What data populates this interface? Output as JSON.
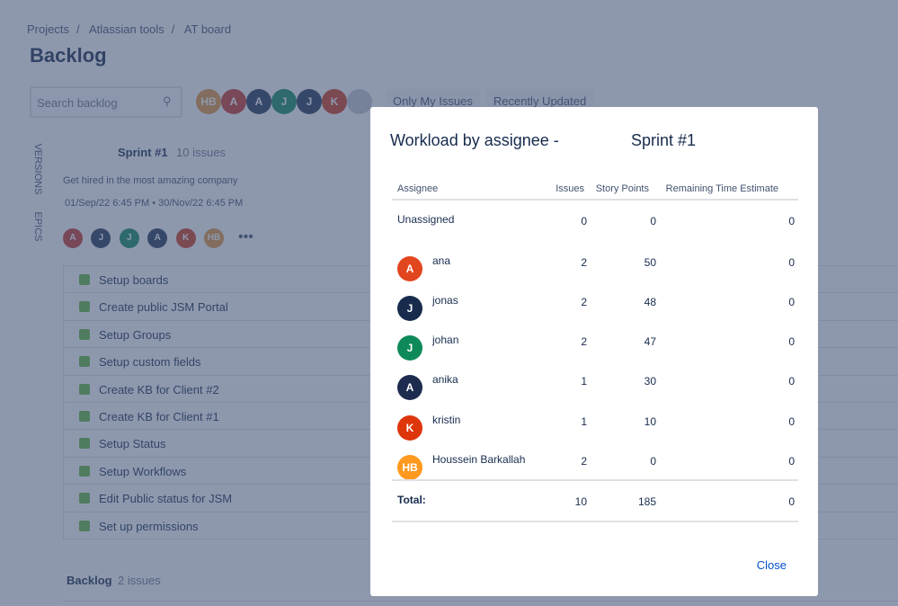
{
  "breadcrumbs": [
    "Projects",
    "Atlassian tools",
    "AT board"
  ],
  "page_title": "Backlog",
  "search_placeholder": "Search backlog",
  "avatars": [
    {
      "initials": "HB",
      "color": "#e0953a"
    },
    {
      "initials": "A",
      "color": "#c9372c"
    },
    {
      "initials": "A",
      "color": "#253858"
    },
    {
      "initials": "J",
      "color": "#0d8a5f"
    },
    {
      "initials": "J",
      "color": "#253858"
    },
    {
      "initials": "K",
      "color": "#cf3a1a"
    }
  ],
  "filters": [
    "Only My Issues",
    "Recently Updated"
  ],
  "side_tabs": [
    "VERSIONS",
    "EPICS"
  ],
  "sprint": {
    "name": "Sprint #1",
    "count": "10 issues",
    "goal": "Get hired in the most amazing company",
    "dates": "01/Sep/22 6:45 PM • 30/Nov/22 6:45 PM",
    "avatars": [
      {
        "initials": "A",
        "color": "#c9372c"
      },
      {
        "initials": "J",
        "color": "#253858"
      },
      {
        "initials": "J",
        "color": "#0d8a5f"
      },
      {
        "initials": "A",
        "color": "#253858"
      },
      {
        "initials": "K",
        "color": "#cf3a1a"
      },
      {
        "initials": "HB",
        "color": "#e0953a"
      }
    ],
    "issues": [
      "Setup boards",
      "Create public JSM Portal",
      "Setup Groups",
      "Setup custom fields",
      "Create KB for Client #2",
      "Create KB for Client #1",
      "Setup Status",
      "Setup Workflows",
      "Edit Public status for JSM",
      "Set up permissions"
    ]
  },
  "backlog": {
    "name": "Backlog",
    "count": "2 issues"
  },
  "modal": {
    "title": "Workload by assignee -",
    "sprint": "Sprint #1",
    "columns": [
      "Assignee",
      "Issues",
      "Story Points",
      "Remaining Time Estimate"
    ],
    "rows": [
      {
        "name": "Unassigned",
        "issues": 0,
        "story_points": 0,
        "remaining": 0
      },
      {
        "initials": "A",
        "color": "#e2461e",
        "name": "ana",
        "issues": 2,
        "story_points": 50,
        "remaining": 0
      },
      {
        "initials": "J",
        "color": "#172b4d",
        "name": "jonas",
        "issues": 2,
        "story_points": 48,
        "remaining": 0
      },
      {
        "initials": "J",
        "color": "#0e8a5a",
        "name": "johan",
        "issues": 2,
        "story_points": 47,
        "remaining": 0
      },
      {
        "initials": "A",
        "color": "#1d2b4f",
        "name": "anika",
        "issues": 1,
        "story_points": 30,
        "remaining": 0
      },
      {
        "initials": "K",
        "color": "#de350b",
        "name": "kristin",
        "issues": 1,
        "story_points": 10,
        "remaining": 0
      },
      {
        "initials": "HB",
        "color": "#ff991f",
        "name": "Houssein Barkallah",
        "issues": 2,
        "story_points": 0,
        "remaining": 0
      }
    ],
    "total": {
      "label": "Total:",
      "issues": 10,
      "story_points": 185,
      "remaining": 0
    },
    "close": "Close"
  }
}
